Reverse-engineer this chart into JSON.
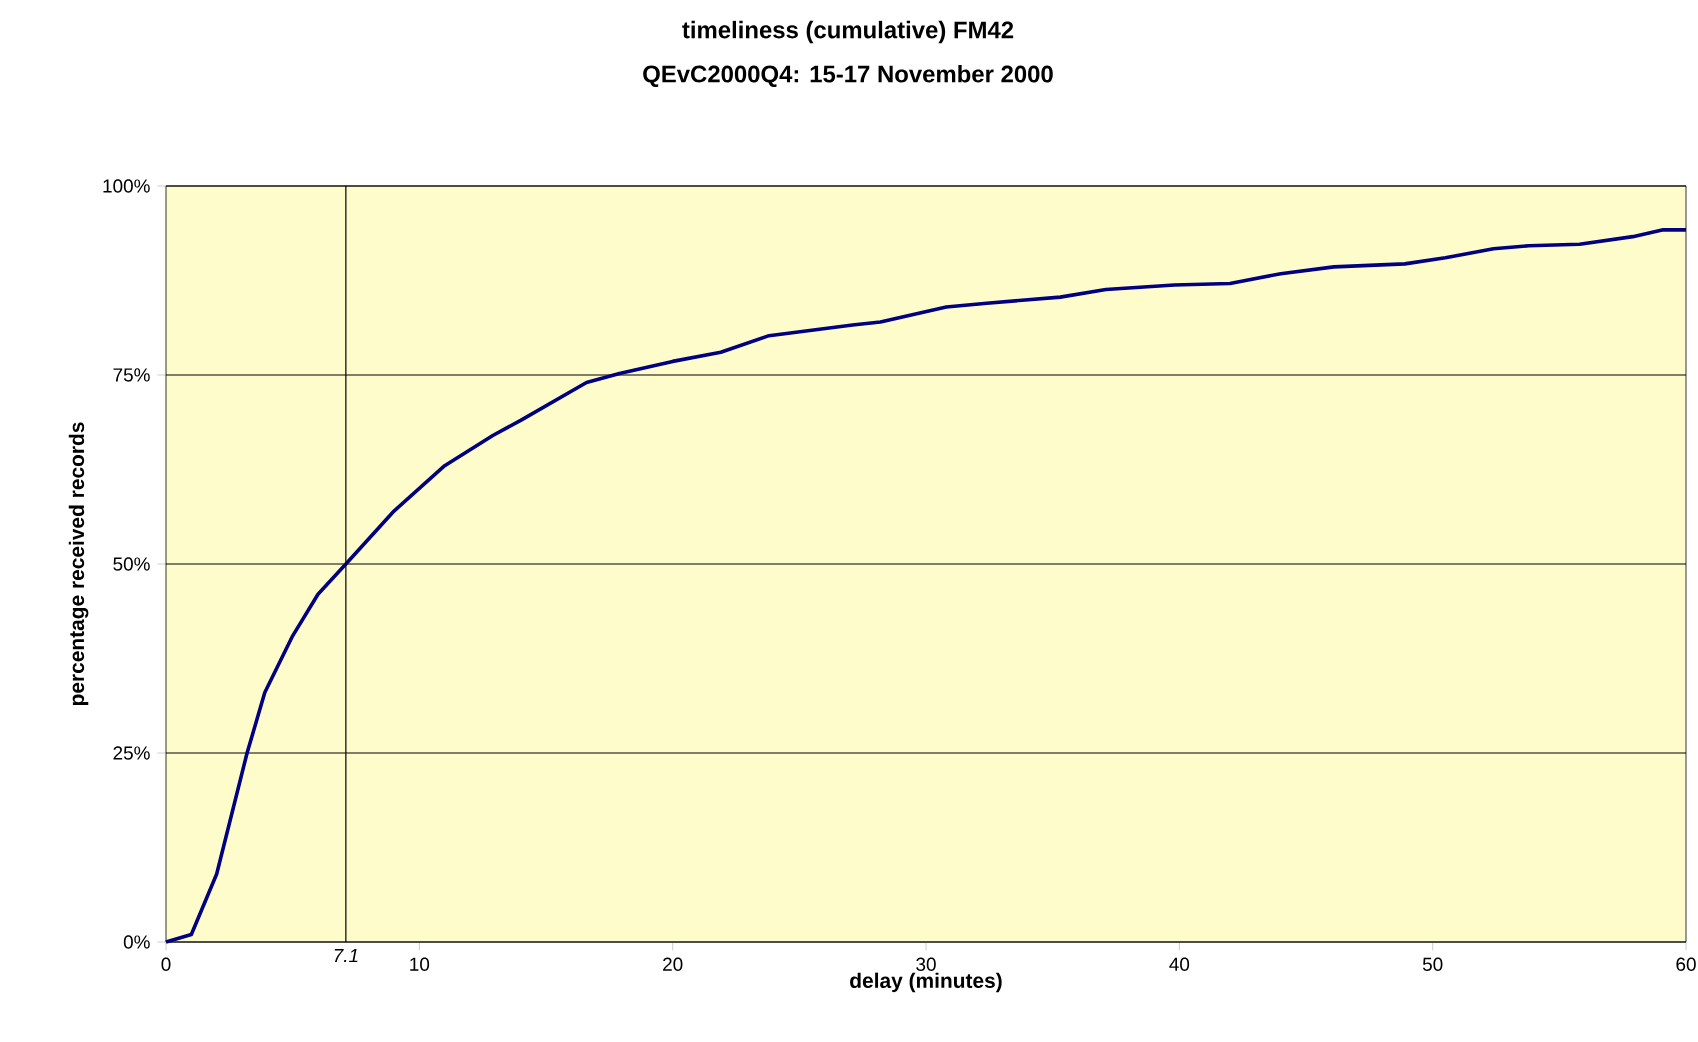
{
  "chart_data": {
    "type": "line",
    "title": "timeliness (cumulative) FM42",
    "subtitle": "QEvC2000Q4: 15-17 November 2000",
    "xlabel": "delay (minutes)",
    "ylabel": "percentage received records",
    "x": [
      0,
      1,
      2,
      3.2,
      3.9,
      5,
      6,
      7.1,
      9,
      11,
      12.9,
      14,
      16.6,
      17.9,
      20,
      21.9,
      23.8,
      27.1,
      28.2,
      30.8,
      32.4,
      35.3,
      37.1,
      39.8,
      42,
      44,
      46.1,
      48.9,
      50.5,
      52.4,
      53.8,
      55.8,
      57.9,
      59.1,
      60
    ],
    "series": [
      {
        "color": "#000080",
        "values": [
          0,
          1,
          9,
          25,
          33,
          40.5,
          46,
          50,
          57,
          63,
          67,
          69,
          74,
          75.2,
          76.8,
          78,
          80.2,
          81.6,
          82,
          84,
          84.5,
          85.3,
          86.3,
          86.9,
          87.1,
          88.4,
          89.3,
          89.7,
          90.5,
          91.7,
          92.1,
          92.3,
          93.3,
          94.2,
          94.2
        ]
      }
    ],
    "xlim": [
      0,
      60
    ],
    "ylim": [
      0,
      100
    ],
    "xticks": [
      0,
      10,
      20,
      30,
      40,
      50,
      60
    ],
    "yticks": [
      {
        "value": 0,
        "label": "0%"
      },
      {
        "value": 25,
        "label": "25%"
      },
      {
        "value": 50,
        "label": "50%"
      },
      {
        "value": 75,
        "label": "75%"
      },
      {
        "value": 100,
        "label": "100%"
      }
    ],
    "grid": "y",
    "marker": "none",
    "ref_lines": [
      {
        "axis": "x",
        "value": 7.1,
        "label": "7.1",
        "color": "#000000"
      }
    ]
  }
}
